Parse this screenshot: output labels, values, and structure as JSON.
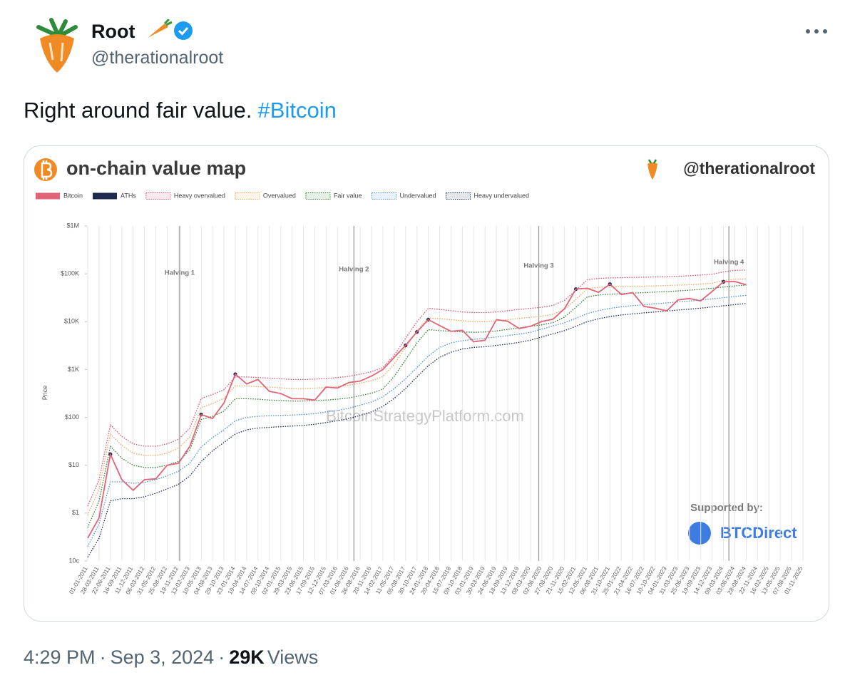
{
  "post": {
    "author": {
      "name": "Root",
      "handle": "@therationalroot"
    },
    "text": "Right around fair value.",
    "hashtag": "#Bitcoin",
    "time": "4:29 PM",
    "separator": "·",
    "date": "Sep 3, 2024",
    "views": "29K",
    "views_label": "Views"
  },
  "chart_data": {
    "type": "line",
    "title": "on-chain value map",
    "credit": "@therationalroot",
    "y_label": "Price",
    "watermark": "BitcoinStrategyPlatform.com",
    "sponsor_label": "Supported by:",
    "sponsor": "BTCDirect",
    "annotations": [
      "Halving 1",
      "Halving 2",
      "Halving 3",
      "Halving 4"
    ],
    "yscale": "log",
    "xgrid": true,
    "ylim": [
      0.1,
      1000000
    ],
    "yticks": [
      {
        "value": 0.1,
        "label": "10c"
      },
      {
        "value": 1,
        "label": "$1"
      },
      {
        "value": 10,
        "label": "$10"
      },
      {
        "value": 100,
        "label": "$100"
      },
      {
        "value": 1000,
        "label": "$1K"
      },
      {
        "value": 10000,
        "label": "$10K"
      },
      {
        "value": 100000,
        "label": "$100K"
      },
      {
        "value": 1000000,
        "label": "$1M"
      }
    ],
    "categories": [
      "01-01-2011",
      "28-03-2011",
      "22-06-2011",
      "16-09-2011",
      "11-12-2011",
      "06-03-2012",
      "31-05-2012",
      "25-08-2012",
      "19-11-2012",
      "13-02-2013",
      "10-05-2013",
      "04-08-2013",
      "29-10-2013",
      "23-01-2014",
      "19-04-2014",
      "14-07-2014",
      "08-10-2014",
      "02-01-2015",
      "29-03-2015",
      "23-06-2015",
      "17-09-2015",
      "12-12-2015",
      "07-03-2016",
      "01-06-2016",
      "26-08-2016",
      "20-11-2016",
      "14-02-2017",
      "11-05-2017",
      "05-08-2017",
      "30-10-2017",
      "24-01-2018",
      "20-04-2018",
      "15-07-2018",
      "09-10-2018",
      "03-01-2019",
      "30-03-2019",
      "24-06-2019",
      "18-09-2019",
      "13-12-2019",
      "08-03-2020",
      "02-06-2020",
      "27-08-2020",
      "21-11-2020",
      "15-02-2021",
      "12-05-2021",
      "06-08-2021",
      "31-10-2021",
      "25-01-2022",
      "21-04-2022",
      "16-07-2022",
      "10-10-2022",
      "04-01-2023",
      "31-03-2023",
      "25-06-2023",
      "19-09-2023",
      "14-12-2023",
      "09-03-2024",
      "03-06-2024",
      "28-08-2024",
      "22-11-2024",
      "16-02-2025",
      "13-05-2025",
      "07-08-2025",
      "01-11-2025"
    ],
    "series": [
      {
        "name": "Bitcoin",
        "color": "#e06377",
        "style": "solid",
        "values": [
          0.3,
          0.8,
          17,
          5,
          3,
          5,
          5.2,
          10,
          11,
          25,
          115,
          95,
          200,
          800,
          500,
          620,
          350,
          315,
          245,
          245,
          230,
          430,
          410,
          535,
          575,
          730,
          1000,
          1800,
          3200,
          6100,
          11000,
          8300,
          6300,
          6600,
          3800,
          4100,
          11000,
          10200,
          7200,
          8000,
          10100,
          11300,
          18700,
          48000,
          50000,
          41000,
          61000,
          36900,
          40500,
          20800,
          19100,
          16850,
          28500,
          30500,
          27200,
          43000,
          68300,
          69000,
          59000,
          null,
          null,
          null,
          null,
          null
        ]
      },
      {
        "name": "ATHs",
        "color": "#1b2a4e",
        "style": "points",
        "values": [
          null,
          null,
          17,
          null,
          null,
          null,
          null,
          null,
          null,
          null,
          115,
          null,
          null,
          800,
          null,
          null,
          null,
          null,
          null,
          null,
          null,
          null,
          null,
          null,
          null,
          null,
          null,
          null,
          3200,
          6100,
          11000,
          null,
          null,
          null,
          null,
          null,
          null,
          null,
          null,
          null,
          null,
          null,
          null,
          48000,
          null,
          null,
          61000,
          null,
          null,
          null,
          null,
          null,
          null,
          null,
          null,
          null,
          68300,
          null,
          null,
          null,
          null,
          null,
          null,
          null
        ]
      },
      {
        "name": "Heavy overvalued",
        "color": "#d9536f",
        "style": "dotted",
        "values": [
          1.4,
          5,
          70,
          40,
          28,
          25,
          25,
          28,
          35,
          60,
          250,
          300,
          380,
          700,
          700,
          680,
          660,
          640,
          620,
          620,
          630,
          650,
          680,
          720,
          800,
          900,
          1100,
          2000,
          4500,
          10000,
          19000,
          18000,
          17000,
          16000,
          15500,
          15500,
          16000,
          17000,
          18000,
          19000,
          20000,
          22000,
          28000,
          45000,
          75000,
          80000,
          82000,
          83000,
          84000,
          85000,
          86000,
          87000,
          89000,
          91000,
          94000,
          98000,
          110000,
          118000,
          120000,
          null,
          null,
          null,
          null,
          null
        ]
      },
      {
        "name": "Overvalued",
        "color": "#f0a65a",
        "style": "dotted",
        "values": [
          0.9,
          3.2,
          45,
          26,
          18,
          16,
          16,
          18,
          23,
          39,
          160,
          195,
          250,
          455,
          455,
          440,
          430,
          415,
          400,
          400,
          410,
          420,
          440,
          470,
          520,
          585,
          715,
          1300,
          2900,
          6500,
          12000,
          11500,
          11000,
          10500,
          10000,
          10000,
          10400,
          11000,
          11700,
          12300,
          13000,
          14300,
          18000,
          29000,
          49000,
          52000,
          53000,
          54000,
          55000,
          55000,
          56000,
          57000,
          58000,
          59000,
          61000,
          64000,
          72000,
          77000,
          78000,
          null,
          null,
          null,
          null,
          null
        ]
      },
      {
        "name": "Fair value",
        "color": "#2e7d32",
        "style": "dotted",
        "values": [
          0.5,
          1.8,
          25,
          14,
          10,
          9,
          9,
          10,
          12,
          21,
          90,
          105,
          135,
          245,
          245,
          240,
          230,
          225,
          220,
          220,
          225,
          230,
          240,
          255,
          285,
          320,
          390,
          720,
          1600,
          3600,
          6800,
          6500,
          6300,
          6100,
          6000,
          6100,
          6400,
          6900,
          7400,
          8000,
          8600,
          9600,
          12500,
          20000,
          33000,
          36000,
          37500,
          38500,
          39500,
          40500,
          41500,
          42500,
          44000,
          45500,
          47500,
          50000,
          53000,
          56000,
          58000,
          null,
          null,
          null,
          null,
          null
        ]
      },
      {
        "name": "Undervalued",
        "color": "#4a90d9",
        "style": "dotted",
        "values": [
          0.2,
          0.6,
          4.5,
          4.5,
          4.2,
          4.4,
          5,
          6,
          7.5,
          11,
          24,
          38,
          55,
          85,
          100,
          105,
          108,
          110,
          112,
          115,
          120,
          130,
          140,
          155,
          180,
          210,
          270,
          400,
          640,
          1100,
          1900,
          2900,
          3600,
          4000,
          4300,
          4500,
          4800,
          5100,
          5500,
          6000,
          7000,
          8200,
          9500,
          11800,
          14800,
          17000,
          19000,
          20500,
          21600,
          22600,
          23600,
          24600,
          25800,
          27000,
          28400,
          30000,
          31800,
          33700,
          35500,
          null,
          null,
          null,
          null,
          null
        ]
      },
      {
        "name": "Heavy undervalued",
        "color": "#1f2d5a",
        "style": "dotted",
        "values": [
          0.12,
          0.3,
          1.8,
          2,
          2,
          2.2,
          2.6,
          3.2,
          4,
          6,
          12,
          20,
          30,
          45,
          55,
          60,
          62,
          64,
          66,
          68,
          72,
          78,
          85,
          95,
          110,
          130,
          170,
          250,
          400,
          700,
          1200,
          1800,
          2300,
          2700,
          2900,
          3000,
          3200,
          3400,
          3700,
          4100,
          4800,
          5600,
          6500,
          8000,
          10000,
          11500,
          12800,
          13800,
          14600,
          15300,
          16000,
          16700,
          17500,
          18300,
          19200,
          20300,
          21500,
          22800,
          24000,
          null,
          null,
          null,
          null,
          null
        ]
      }
    ]
  }
}
